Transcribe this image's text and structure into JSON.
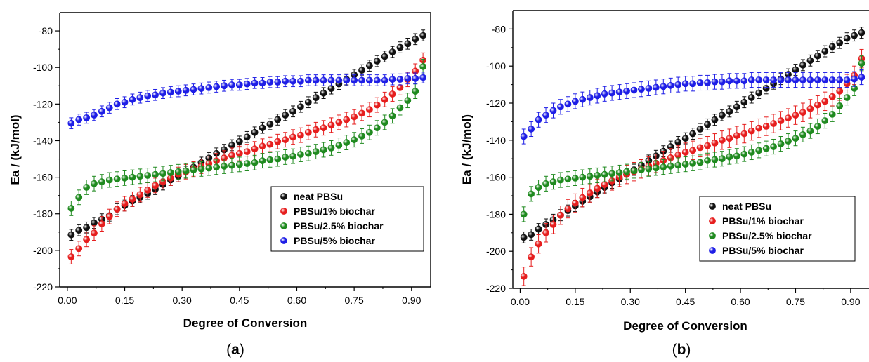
{
  "chart_data": [
    {
      "type": "scatter",
      "panel_label": "a",
      "xlabel": "Degree of Conversion",
      "ylabel": "Ea / (kJ/mol)",
      "xlim": [
        -0.02,
        0.95
      ],
      "ylim": [
        -220,
        -70
      ],
      "xticks": [
        "0.00",
        "0.15",
        "0.30",
        "0.45",
        "0.60",
        "0.75",
        "0.90"
      ],
      "yticks": [
        "-80",
        "-100",
        "-120",
        "-140",
        "-160",
        "-180",
        "-200",
        "-220"
      ],
      "grid": false,
      "legend_position": "bottom-right",
      "series": [
        {
          "name": "neat PBSu",
          "color": "#111111",
          "error": 3,
          "x": [
            0.01,
            0.03,
            0.05,
            0.07,
            0.09,
            0.11,
            0.13,
            0.15,
            0.17,
            0.19,
            0.21,
            0.23,
            0.25,
            0.27,
            0.29,
            0.31,
            0.33,
            0.35,
            0.37,
            0.39,
            0.41,
            0.43,
            0.45,
            0.47,
            0.49,
            0.51,
            0.53,
            0.55,
            0.57,
            0.59,
            0.61,
            0.63,
            0.65,
            0.67,
            0.69,
            0.71,
            0.73,
            0.75,
            0.77,
            0.79,
            0.81,
            0.83,
            0.85,
            0.87,
            0.89,
            0.91,
            0.93
          ],
          "y": [
            -191.5,
            -189,
            -187.5,
            -185,
            -183,
            -181,
            -177.5,
            -175.5,
            -173,
            -171,
            -169,
            -166.5,
            -164,
            -161.5,
            -159.5,
            -157,
            -154.5,
            -152,
            -149.5,
            -147,
            -145,
            -142.5,
            -140.5,
            -138,
            -135.5,
            -133,
            -131,
            -128.5,
            -126,
            -124,
            -121.5,
            -119,
            -116.5,
            -114,
            -111.5,
            -109,
            -106.5,
            -104,
            -101.5,
            -99,
            -96.5,
            -94,
            -91.5,
            -89,
            -87,
            -84.5,
            -82.5
          ]
        },
        {
          "name": "PBSu/1% biochar",
          "color": "#e61e1e",
          "error": 4,
          "x": [
            0.01,
            0.03,
            0.05,
            0.07,
            0.09,
            0.11,
            0.13,
            0.15,
            0.17,
            0.19,
            0.21,
            0.23,
            0.25,
            0.27,
            0.29,
            0.31,
            0.33,
            0.35,
            0.37,
            0.39,
            0.41,
            0.43,
            0.45,
            0.47,
            0.49,
            0.51,
            0.53,
            0.55,
            0.57,
            0.59,
            0.61,
            0.63,
            0.65,
            0.67,
            0.69,
            0.71,
            0.73,
            0.75,
            0.77,
            0.79,
            0.81,
            0.83,
            0.85,
            0.87,
            0.89,
            0.91,
            0.93
          ],
          "y": [
            -203.5,
            -199,
            -194,
            -190.5,
            -185.5,
            -181.5,
            -177.5,
            -174.5,
            -172,
            -169.5,
            -167,
            -164.5,
            -162.5,
            -160.5,
            -158.5,
            -157,
            -155.5,
            -154,
            -152.5,
            -151,
            -149.5,
            -148,
            -147,
            -146,
            -144.5,
            -143,
            -142,
            -140.5,
            -139.5,
            -138,
            -137,
            -135.5,
            -134,
            -133,
            -131.5,
            -130,
            -128.5,
            -127,
            -125,
            -123,
            -120.5,
            -117.5,
            -114.5,
            -111,
            -106.5,
            -102,
            -96
          ]
        },
        {
          "name": "PBSu/2.5% biochar",
          "color": "#1f8a1f",
          "error": 4,
          "x": [
            0.01,
            0.03,
            0.05,
            0.07,
            0.09,
            0.11,
            0.13,
            0.15,
            0.17,
            0.19,
            0.21,
            0.23,
            0.25,
            0.27,
            0.29,
            0.31,
            0.33,
            0.35,
            0.37,
            0.39,
            0.41,
            0.43,
            0.45,
            0.47,
            0.49,
            0.51,
            0.53,
            0.55,
            0.57,
            0.59,
            0.61,
            0.63,
            0.65,
            0.67,
            0.69,
            0.71,
            0.73,
            0.75,
            0.77,
            0.79,
            0.81,
            0.83,
            0.85,
            0.87,
            0.89,
            0.91,
            0.93
          ],
          "y": [
            -177,
            -171,
            -165.5,
            -163.5,
            -162.5,
            -161.5,
            -161,
            -160.5,
            -160,
            -159.5,
            -159,
            -158.5,
            -158,
            -157.5,
            -157,
            -156.5,
            -156,
            -155.5,
            -155,
            -154.5,
            -154,
            -153.5,
            -153,
            -152.5,
            -152,
            -151,
            -150.5,
            -150,
            -149,
            -148.5,
            -147.5,
            -147,
            -146,
            -145,
            -144,
            -142.5,
            -141,
            -139.5,
            -137.5,
            -135.5,
            -133,
            -130,
            -126.5,
            -122,
            -118,
            -113,
            -99.5
          ]
        },
        {
          "name": "PBSu/5% biochar",
          "color": "#1e1ee6",
          "error": 3,
          "x": [
            0.01,
            0.03,
            0.05,
            0.07,
            0.09,
            0.11,
            0.13,
            0.15,
            0.17,
            0.19,
            0.21,
            0.23,
            0.25,
            0.27,
            0.29,
            0.31,
            0.33,
            0.35,
            0.37,
            0.39,
            0.41,
            0.43,
            0.45,
            0.47,
            0.49,
            0.51,
            0.53,
            0.55,
            0.57,
            0.59,
            0.61,
            0.63,
            0.65,
            0.67,
            0.69,
            0.71,
            0.73,
            0.75,
            0.77,
            0.79,
            0.81,
            0.83,
            0.85,
            0.87,
            0.89,
            0.91,
            0.93
          ],
          "y": [
            -130.5,
            -128.5,
            -127.5,
            -126,
            -124,
            -122,
            -120,
            -119,
            -117.5,
            -116.5,
            -115.5,
            -115,
            -114,
            -113.5,
            -113,
            -112.5,
            -112,
            -111.5,
            -111,
            -110.5,
            -110,
            -109.5,
            -109.5,
            -109,
            -108.5,
            -108.5,
            -108,
            -108,
            -107.5,
            -107.5,
            -107.5,
            -107,
            -107,
            -107,
            -107,
            -107,
            -107,
            -107,
            -107,
            -107,
            -107,
            -107,
            -106.5,
            -106.5,
            -106,
            -106,
            -105.5
          ]
        }
      ]
    },
    {
      "type": "scatter",
      "panel_label": "b",
      "xlabel": "Degree of Conversion",
      "ylabel": "Ea / (kJ/mol)",
      "xlim": [
        -0.02,
        0.95
      ],
      "ylim": [
        -220,
        -70
      ],
      "xticks": [
        "0.00",
        "0.15",
        "0.30",
        "0.45",
        "0.60",
        "0.75",
        "0.90"
      ],
      "yticks": [
        "-80",
        "-100",
        "-120",
        "-140",
        "-160",
        "-180",
        "-200",
        "-220"
      ],
      "grid": false,
      "legend_position": "bottom-right",
      "series": [
        {
          "name": "neat PBSu",
          "color": "#111111",
          "error": 3,
          "x": [
            0.01,
            0.03,
            0.05,
            0.07,
            0.09,
            0.11,
            0.13,
            0.15,
            0.17,
            0.19,
            0.21,
            0.23,
            0.25,
            0.27,
            0.29,
            0.31,
            0.33,
            0.35,
            0.37,
            0.39,
            0.41,
            0.43,
            0.45,
            0.47,
            0.49,
            0.51,
            0.53,
            0.55,
            0.57,
            0.59,
            0.61,
            0.63,
            0.65,
            0.67,
            0.69,
            0.71,
            0.73,
            0.75,
            0.77,
            0.79,
            0.81,
            0.83,
            0.85,
            0.87,
            0.89,
            0.91,
            0.93
          ],
          "y": [
            -192.5,
            -191,
            -188,
            -185.5,
            -183,
            -180.5,
            -178,
            -175.5,
            -173,
            -170.5,
            -168,
            -165.5,
            -163,
            -161,
            -158.5,
            -156,
            -153.5,
            -151,
            -148.5,
            -146,
            -143.5,
            -141,
            -139,
            -136.5,
            -134,
            -131.5,
            -129,
            -126.5,
            -124.5,
            -122,
            -119.5,
            -117,
            -114.5,
            -112,
            -109.5,
            -107,
            -104.5,
            -102,
            -99.5,
            -97,
            -94.5,
            -92,
            -89.5,
            -87.5,
            -85,
            -83.5,
            -82
          ]
        },
        {
          "name": "PBSu/1% biochar",
          "color": "#e61e1e",
          "error": 5,
          "x": [
            0.01,
            0.03,
            0.05,
            0.07,
            0.09,
            0.11,
            0.13,
            0.15,
            0.17,
            0.19,
            0.21,
            0.23,
            0.25,
            0.27,
            0.29,
            0.31,
            0.33,
            0.35,
            0.37,
            0.39,
            0.41,
            0.43,
            0.45,
            0.47,
            0.49,
            0.51,
            0.53,
            0.55,
            0.57,
            0.59,
            0.61,
            0.63,
            0.65,
            0.67,
            0.69,
            0.71,
            0.73,
            0.75,
            0.77,
            0.79,
            0.81,
            0.83,
            0.85,
            0.87,
            0.89,
            0.91,
            0.93
          ],
          "y": [
            -213.5,
            -203,
            -196,
            -190,
            -185.5,
            -180.5,
            -177,
            -174,
            -171,
            -168.5,
            -166,
            -164,
            -162,
            -160,
            -158.5,
            -157,
            -155.5,
            -154,
            -152.5,
            -151,
            -149.5,
            -148,
            -146.5,
            -145.5,
            -144,
            -143,
            -141.5,
            -140,
            -139,
            -137.5,
            -136.5,
            -135,
            -133.5,
            -132.5,
            -131,
            -129.5,
            -128,
            -126.5,
            -125,
            -123,
            -121,
            -119,
            -116.5,
            -113.5,
            -109.5,
            -105,
            -96
          ]
        },
        {
          "name": "PBSu/2.5% biochar",
          "color": "#1f8a1f",
          "error": 4,
          "x": [
            0.01,
            0.03,
            0.05,
            0.07,
            0.09,
            0.11,
            0.13,
            0.15,
            0.17,
            0.19,
            0.21,
            0.23,
            0.25,
            0.27,
            0.29,
            0.31,
            0.33,
            0.35,
            0.37,
            0.39,
            0.41,
            0.43,
            0.45,
            0.47,
            0.49,
            0.51,
            0.53,
            0.55,
            0.57,
            0.59,
            0.61,
            0.63,
            0.65,
            0.67,
            0.69,
            0.71,
            0.73,
            0.75,
            0.77,
            0.79,
            0.81,
            0.83,
            0.85,
            0.87,
            0.89,
            0.91,
            0.93
          ],
          "y": [
            -180,
            -169,
            -165.5,
            -163.5,
            -162.5,
            -161.5,
            -161,
            -160.5,
            -160,
            -159.5,
            -159,
            -158.5,
            -158,
            -157.5,
            -157,
            -156.5,
            -156,
            -155.5,
            -155,
            -154.5,
            -154,
            -153.5,
            -153,
            -152.5,
            -152,
            -151,
            -150.5,
            -150,
            -149,
            -148.5,
            -147.5,
            -146.5,
            -145.5,
            -144.5,
            -143.5,
            -142,
            -140.5,
            -139,
            -137,
            -135,
            -132.5,
            -129.5,
            -126,
            -121.5,
            -117,
            -112,
            -98.5
          ]
        },
        {
          "name": "PBSu/5% biochar",
          "color": "#1e1ee6",
          "error": 4,
          "x": [
            0.01,
            0.03,
            0.05,
            0.07,
            0.09,
            0.11,
            0.13,
            0.15,
            0.17,
            0.19,
            0.21,
            0.23,
            0.25,
            0.27,
            0.29,
            0.31,
            0.33,
            0.35,
            0.37,
            0.39,
            0.41,
            0.43,
            0.45,
            0.47,
            0.49,
            0.51,
            0.53,
            0.55,
            0.57,
            0.59,
            0.61,
            0.63,
            0.65,
            0.67,
            0.69,
            0.71,
            0.73,
            0.75,
            0.77,
            0.79,
            0.81,
            0.83,
            0.85,
            0.87,
            0.89,
            0.91,
            0.93
          ],
          "y": [
            -138,
            -134,
            -129,
            -126.5,
            -124,
            -122,
            -120.5,
            -119,
            -118,
            -117,
            -116,
            -115,
            -114.5,
            -114,
            -113.5,
            -113,
            -112.5,
            -112,
            -111.5,
            -111,
            -110.5,
            -110,
            -109.5,
            -109.5,
            -109,
            -109,
            -108.5,
            -108.5,
            -108,
            -108,
            -108,
            -107.5,
            -107.5,
            -107.5,
            -107.5,
            -107.5,
            -107.5,
            -107.5,
            -107.5,
            -107.5,
            -107.5,
            -107.5,
            -107.5,
            -107.5,
            -107.5,
            -107,
            -106
          ]
        }
      ]
    }
  ]
}
